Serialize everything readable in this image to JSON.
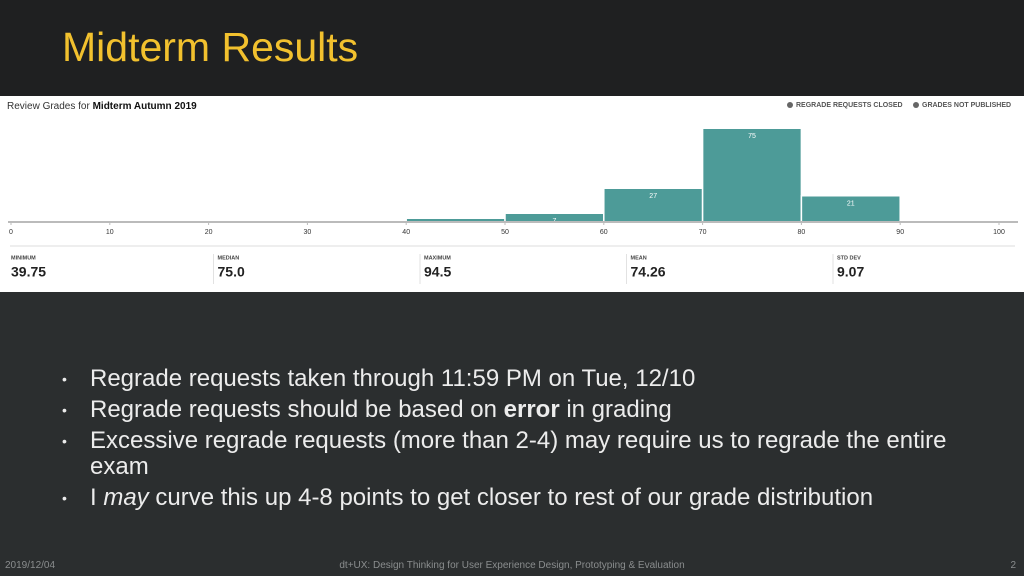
{
  "slide": {
    "title": "Midterm Results",
    "bullets": [
      [
        {
          "text": "Regrade requests taken through 11:59 PM on Tue, 12/10"
        }
      ],
      [
        {
          "text": "Regrade requests should be based on "
        },
        {
          "text": "error",
          "bold": true
        },
        {
          "text": " in grading"
        }
      ],
      [
        {
          "text": "Excessive regrade requests (more than 2-4) may require us to regrade the entire exam"
        }
      ],
      [
        {
          "text": "I "
        },
        {
          "text": "may",
          "italic": true
        },
        {
          "text": " curve this up 4-8 points to get closer to rest of our grade distribution"
        }
      ]
    ],
    "footer": {
      "date": "2019/12/04",
      "course": "dt+UX: Design Thinking for User Experience Design, Prototyping & Evaluation",
      "page": "2"
    }
  },
  "chart_data": {
    "type": "histogram",
    "header_prefix": "Review Grades for",
    "header_exam": "Midterm Autumn 2019",
    "legend": [
      "REGRADE REQUESTS CLOSED",
      "GRADES NOT PUBLISHED"
    ],
    "bins": [
      0,
      10,
      20,
      30,
      40,
      50,
      60,
      70,
      80,
      90,
      100
    ],
    "values": [
      0,
      0,
      0,
      1,
      3,
      7,
      27,
      75,
      21,
      1
    ],
    "value_labels": [
      null,
      null,
      null,
      null,
      null,
      "7",
      "27",
      "75",
      "21",
      null
    ],
    "color": "#4d9b98",
    "xlim": [
      0,
      100
    ],
    "xticks": [
      0,
      10,
      20,
      30,
      40,
      50,
      60,
      70,
      80,
      90,
      100
    ],
    "ylim": [
      0,
      80
    ],
    "stats": [
      {
        "label": "MINIMUM",
        "value": "39.75"
      },
      {
        "label": "MEDIAN",
        "value": "75.0"
      },
      {
        "label": "MAXIMUM",
        "value": "94.5"
      },
      {
        "label": "MEAN",
        "value": "74.26"
      },
      {
        "label": "STD DEV",
        "value": "9.07"
      }
    ]
  }
}
